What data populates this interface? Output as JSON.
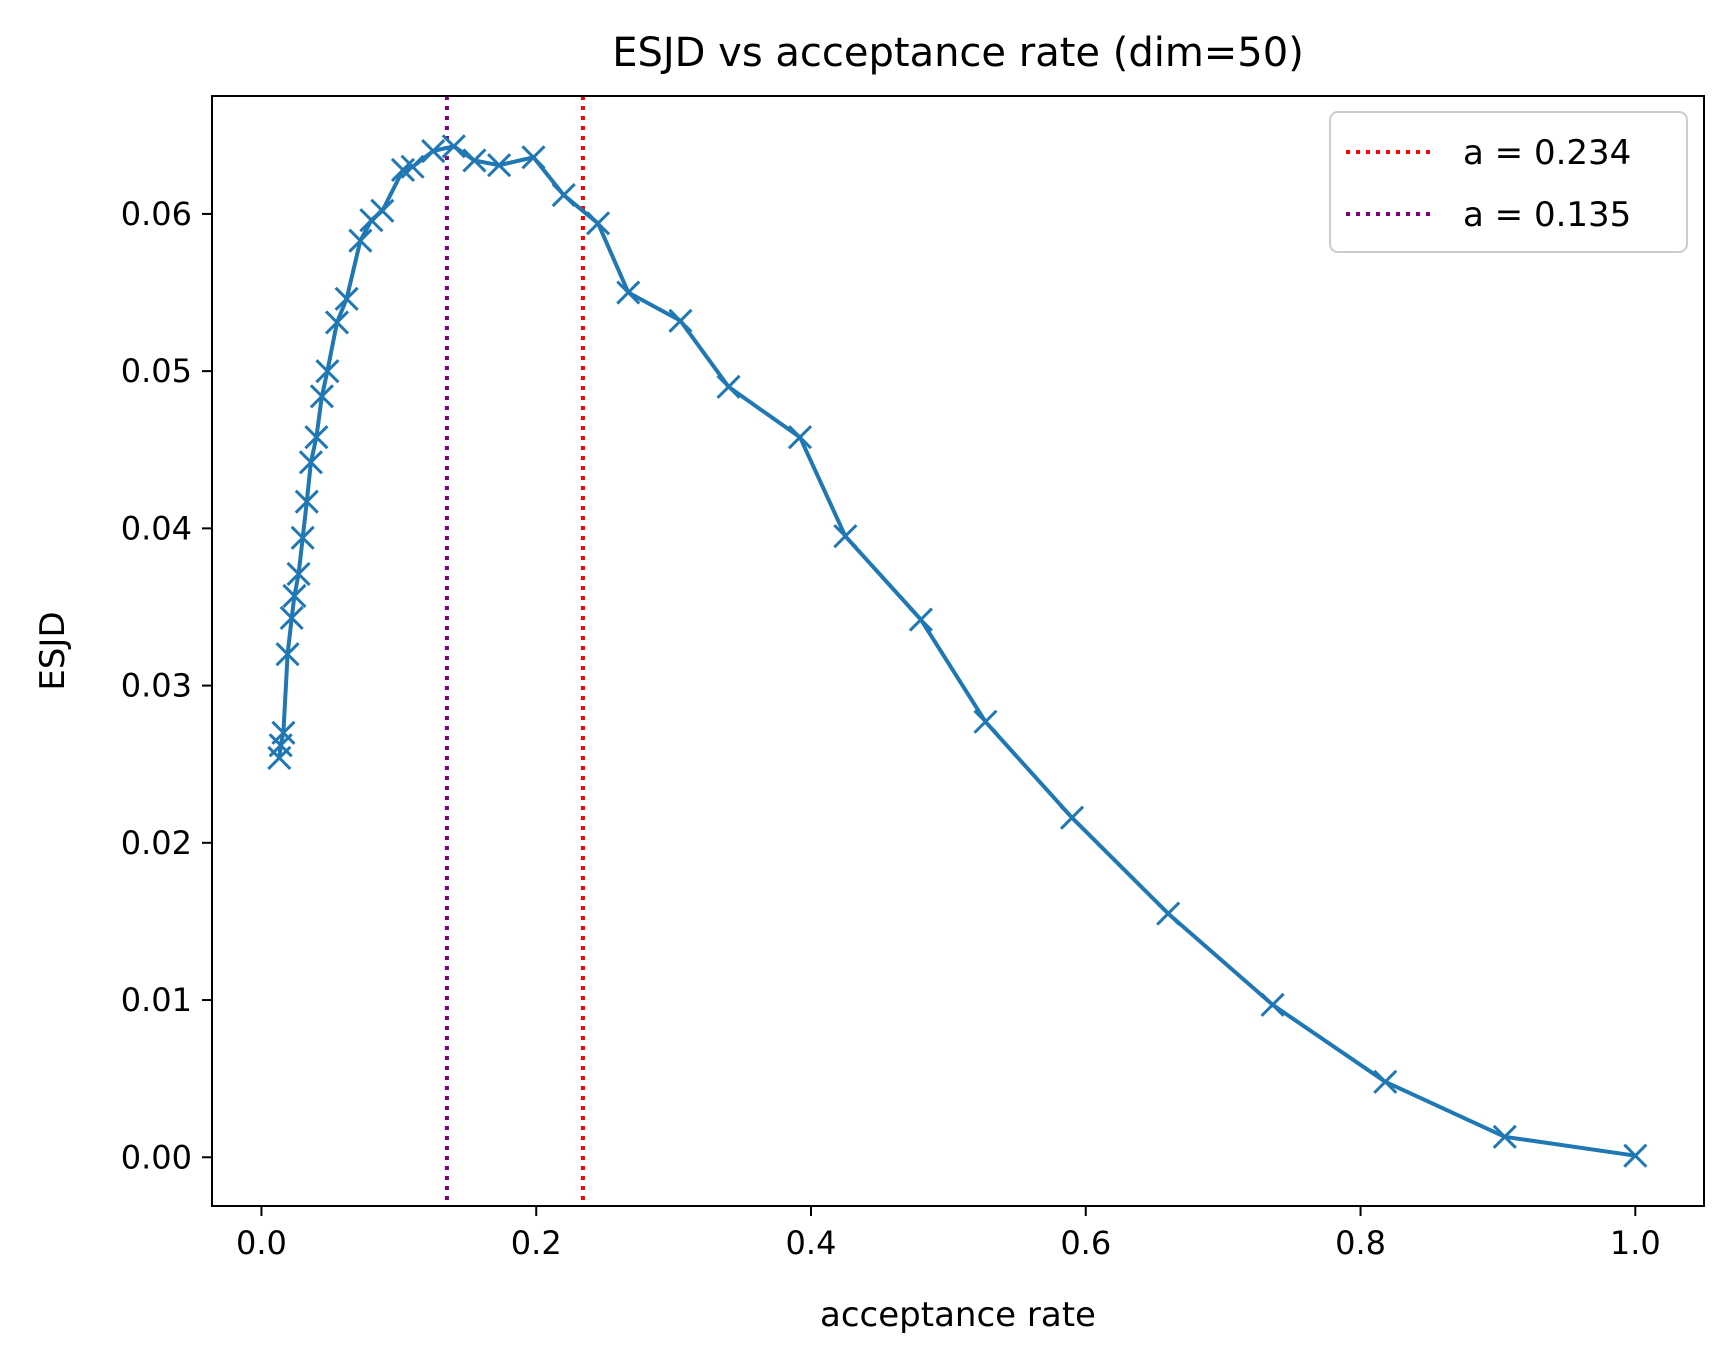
{
  "chart_data": {
    "type": "line",
    "title": "ESJD vs acceptance rate (dim=50)",
    "xlabel": "acceptance rate",
    "ylabel": "ESJD",
    "xlim": [
      -0.036,
      1.05
    ],
    "ylim": [
      -0.0031,
      0.0675
    ],
    "xticks": [
      0.0,
      0.2,
      0.4,
      0.6,
      0.8,
      1.0
    ],
    "xtick_labels": [
      "0.0",
      "0.2",
      "0.4",
      "0.6",
      "0.8",
      "1.0"
    ],
    "yticks": [
      0.0,
      0.01,
      0.02,
      0.03,
      0.04,
      0.05,
      0.06
    ],
    "ytick_labels": [
      "0.00",
      "0.01",
      "0.02",
      "0.03",
      "0.04",
      "0.05",
      "0.06"
    ],
    "grid": false,
    "legend_position": "top-right",
    "series": [
      {
        "name": "ESJD",
        "color": "#1f77b4",
        "marker": "x",
        "x": [
          0.013,
          0.014,
          0.016,
          0.019,
          0.022,
          0.024,
          0.027,
          0.03,
          0.033,
          0.036,
          0.04,
          0.044,
          0.048,
          0.055,
          0.062,
          0.072,
          0.08,
          0.088,
          0.103,
          0.11,
          0.125,
          0.14,
          0.155,
          0.173,
          0.198,
          0.22,
          0.245,
          0.267,
          0.305,
          0.34,
          0.392,
          0.425,
          0.48,
          0.527,
          0.59,
          0.66,
          0.736,
          0.818,
          0.905,
          1.0
        ],
        "y": [
          0.0254,
          0.0262,
          0.027,
          0.032,
          0.0343,
          0.0357,
          0.0371,
          0.0394,
          0.0417,
          0.0442,
          0.0458,
          0.0484,
          0.05,
          0.0531,
          0.0546,
          0.0583,
          0.0596,
          0.0602,
          0.0628,
          0.063,
          0.064,
          0.0643,
          0.0634,
          0.0631,
          0.0636,
          0.0612,
          0.0594,
          0.055,
          0.0532,
          0.049,
          0.0458,
          0.0395,
          0.0342,
          0.0277,
          0.0216,
          0.0155,
          0.0097,
          0.0048,
          0.0013,
          0.0001
        ]
      }
    ],
    "reference_lines": [
      {
        "label": "a = 0.234",
        "x": 0.234,
        "color": "#ff0000",
        "style": "dotted"
      },
      {
        "label": "a = 0.135",
        "x": 0.135,
        "color": "#800080",
        "style": "dotted"
      }
    ]
  }
}
